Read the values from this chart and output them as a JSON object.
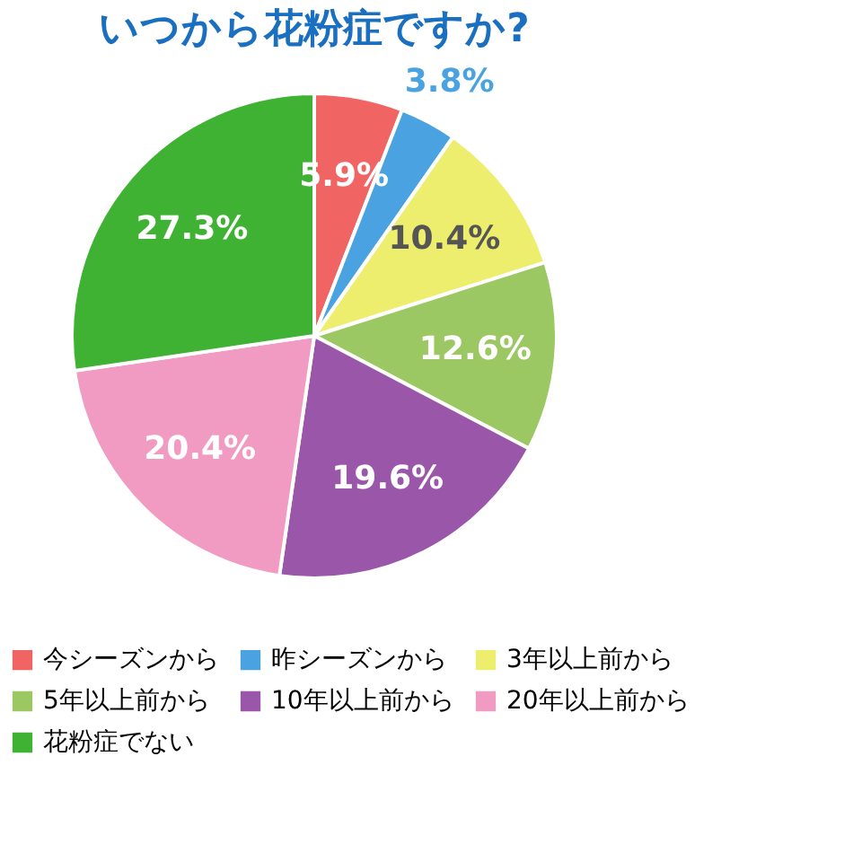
{
  "chart_data": {
    "type": "pie",
    "title": "いつから花粉症ですか?",
    "categories": [
      "今シーズンから",
      "昨シーズンから",
      "3年以上前から",
      "5年以上前から",
      "10年以上前から",
      "20年以上前から",
      "花粉症でない"
    ],
    "values": [
      5.9,
      3.8,
      10.4,
      12.6,
      19.6,
      20.4,
      27.3
    ],
    "colors": [
      "#f06464",
      "#4aa3e0",
      "#eeee6e",
      "#9cc864",
      "#9a56a8",
      "#f19bc2",
      "#3fb234"
    ],
    "value_labels": [
      "5.9%",
      "3.8%",
      "10.4%",
      "12.6%",
      "19.6%",
      "20.4%",
      "27.3%"
    ],
    "legend": "bottom"
  }
}
